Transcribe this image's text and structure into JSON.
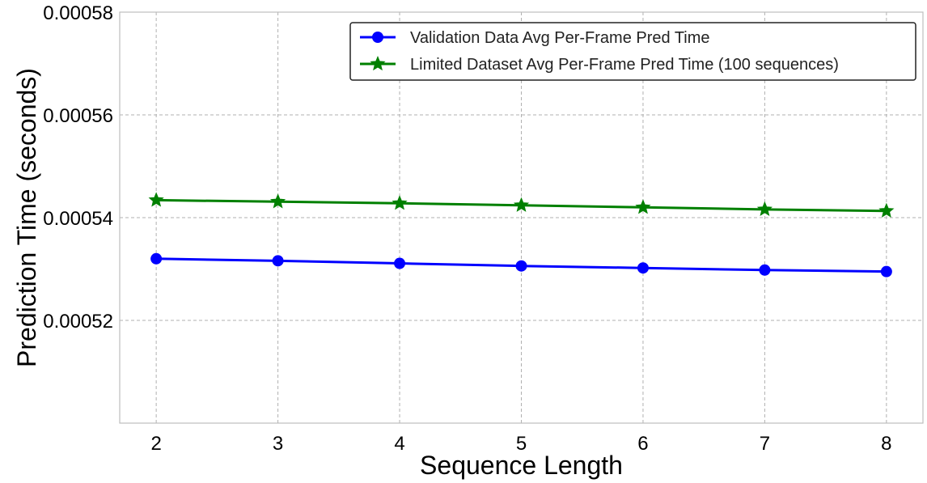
{
  "chart_data": {
    "type": "line",
    "title": "",
    "xlabel": "Sequence Length",
    "ylabel": "Prediction Time (seconds)",
    "x": [
      2,
      3,
      4,
      5,
      6,
      7,
      8
    ],
    "xlim": [
      1.7,
      8.3
    ],
    "ylim": [
      0.0005,
      0.00058
    ],
    "xticks": [
      2,
      3,
      4,
      5,
      6,
      7,
      8
    ],
    "yticks": [
      0.00052,
      0.00054,
      0.00056,
      0.00058
    ],
    "ytick_labels": [
      "0.00052",
      "0.00054",
      "0.00056",
      "0.00058"
    ],
    "grid": true,
    "legend_position": "top-right",
    "series": [
      {
        "name": "Validation Data Avg Per-Frame Pred Time",
        "color": "#0000ff",
        "marker": "circle",
        "values": [
          0.000532,
          0.0005316,
          0.0005311,
          0.0005306,
          0.0005302,
          0.0005298,
          0.0005295
        ]
      },
      {
        "name": "Limited Dataset Avg Per-Frame Pred Time (100 sequences)",
        "color": "#008000",
        "marker": "star",
        "values": [
          0.0005434,
          0.0005431,
          0.0005428,
          0.0005424,
          0.000542,
          0.0005416,
          0.0005413
        ]
      }
    ]
  }
}
